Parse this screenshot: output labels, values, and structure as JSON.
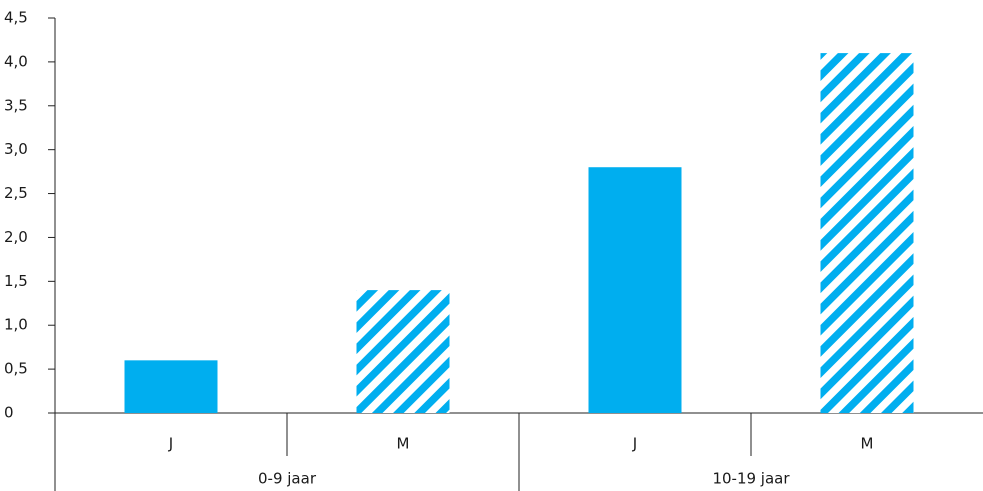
{
  "chart_data": {
    "type": "bar",
    "title": "",
    "xlabel": "",
    "ylabel": "",
    "ylim": [
      0,
      4.5
    ],
    "yticks": [
      "0",
      "0,5",
      "1,0",
      "1,5",
      "2,0",
      "2,5",
      "3,0",
      "3,5",
      "4,0",
      "4,5"
    ],
    "groups": [
      {
        "label": "0-9 jaar",
        "bars": [
          {
            "label": "J",
            "value": 0.6,
            "pattern": "solid"
          },
          {
            "label": "M",
            "value": 1.4,
            "pattern": "hatched"
          }
        ]
      },
      {
        "label": "10-19 jaar",
        "bars": [
          {
            "label": "J",
            "value": 2.8,
            "pattern": "solid"
          },
          {
            "label": "M",
            "value": 4.1,
            "pattern": "hatched"
          }
        ]
      }
    ],
    "grid": false,
    "legend": "none",
    "bar_color": "#00aeef"
  }
}
